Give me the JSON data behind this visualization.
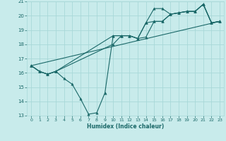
{
  "xlabel": "Humidex (Indice chaleur)",
  "bg_color": "#c8ebeb",
  "grid_color": "#a8d8d8",
  "line_color": "#1a6868",
  "xlim": [
    -0.5,
    23.5
  ],
  "ylim": [
    13,
    21
  ],
  "xticks": [
    0,
    1,
    2,
    3,
    4,
    5,
    6,
    7,
    8,
    9,
    10,
    11,
    12,
    13,
    14,
    15,
    16,
    17,
    18,
    19,
    20,
    21,
    22,
    23
  ],
  "yticks": [
    13,
    14,
    15,
    16,
    17,
    18,
    19,
    20,
    21
  ],
  "series1_x": [
    0,
    1,
    2,
    3,
    4,
    5,
    6,
    7,
    8,
    9,
    10,
    11,
    12,
    13,
    14,
    15,
    16,
    17,
    18,
    19,
    20,
    21,
    22,
    23
  ],
  "series1_y": [
    16.5,
    16.1,
    15.9,
    16.1,
    15.6,
    15.2,
    14.2,
    13.1,
    13.2,
    14.6,
    18.6,
    18.6,
    18.6,
    18.4,
    18.5,
    19.6,
    19.6,
    20.1,
    20.2,
    20.3,
    20.3,
    20.8,
    19.5,
    19.6
  ],
  "series2_x": [
    0,
    1,
    2,
    3,
    10,
    11,
    12,
    13,
    14,
    15,
    16,
    17,
    18,
    19,
    20,
    21,
    22,
    23
  ],
  "series2_y": [
    16.5,
    16.1,
    15.9,
    16.1,
    18.6,
    18.6,
    18.6,
    18.4,
    19.5,
    20.5,
    20.5,
    20.1,
    20.2,
    20.3,
    20.3,
    20.8,
    19.5,
    19.6
  ],
  "series3_x": [
    0,
    1,
    2,
    3,
    10,
    11,
    12,
    13,
    14,
    15,
    16,
    17,
    18,
    19,
    20,
    21,
    22,
    23
  ],
  "series3_y": [
    16.5,
    16.1,
    15.9,
    16.1,
    18.0,
    18.6,
    18.6,
    18.4,
    19.5,
    19.6,
    19.6,
    20.1,
    20.2,
    20.3,
    20.3,
    20.8,
    19.5,
    19.6
  ],
  "trendline_x": [
    0,
    23
  ],
  "trendline_y": [
    16.5,
    19.6
  ],
  "figsize": [
    3.2,
    2.0
  ],
  "dpi": 100
}
